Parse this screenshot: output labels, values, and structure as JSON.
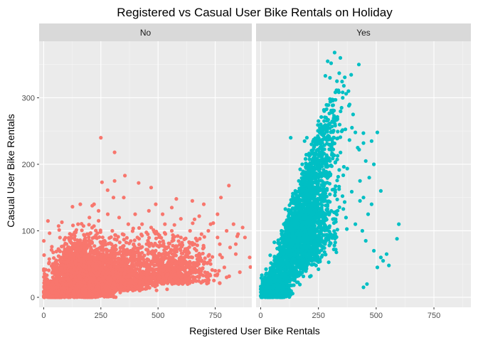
{
  "chart_data": {
    "type": "scatter",
    "title": "Registered vs Casual User Bike Rentals on Holiday",
    "xlabel": "Registered User Bike Rentals",
    "ylabel": "Casual User Bike Rentals",
    "xlim": [
      -20,
      910
    ],
    "ylim": [
      -15,
      385
    ],
    "x_ticks": [
      0,
      250,
      500,
      750
    ],
    "x_tick_labels": [
      "0",
      "250",
      "500",
      "750"
    ],
    "y_ticks": [
      0,
      100,
      200,
      300
    ],
    "y_tick_labels": [
      "0",
      "100",
      "200",
      "300"
    ],
    "grid": true,
    "legend": "none",
    "facet_by": "holiday",
    "series": [
      {
        "facet": "No",
        "color": "#F8766D",
        "values": [
          [
            250,
            240
          ],
          [
            310,
            218
          ],
          [
            355,
            183
          ],
          [
            255,
            173
          ],
          [
            415,
            172
          ],
          [
            310,
            175
          ],
          [
            470,
            165
          ],
          [
            350,
            150
          ],
          [
            160,
            140
          ],
          [
            305,
            150
          ],
          [
            490,
            140
          ],
          [
            560,
            135
          ],
          [
            580,
            148
          ],
          [
            650,
            145
          ],
          [
            700,
            140
          ],
          [
            775,
            150
          ],
          [
            810,
            168
          ],
          [
            520,
            125
          ],
          [
            460,
            130
          ],
          [
            400,
            125
          ],
          [
            600,
            118
          ],
          [
            680,
            122
          ],
          [
            730,
            110
          ],
          [
            760,
            125
          ],
          [
            830,
            110
          ],
          [
            850,
            95
          ],
          [
            880,
            90
          ],
          [
            870,
            105
          ],
          [
            840,
            80
          ],
          [
            800,
            100
          ],
          [
            760,
            90
          ],
          [
            720,
            100
          ],
          [
            690,
            95
          ],
          [
            640,
            100
          ],
          [
            600,
            90
          ],
          [
            560,
            100
          ],
          [
            530,
            110
          ],
          [
            500,
            95
          ],
          [
            470,
            105
          ],
          [
            430,
            110
          ],
          [
            780,
            60
          ],
          [
            750,
            40
          ],
          [
            720,
            35
          ],
          [
            700,
            50
          ],
          [
            650,
            60
          ],
          [
            620,
            45
          ],
          [
            600,
            30
          ],
          [
            560,
            55
          ],
          [
            520,
            40
          ],
          [
            700,
            75
          ],
          [
            800,
            30
          ],
          [
            770,
            80
          ],
          [
            840,
            65
          ],
          [
            660,
            80
          ],
          [
            630,
            70
          ],
          [
            575,
            75
          ],
          [
            545,
            65
          ],
          [
            590,
            20
          ],
          [
            640,
            25
          ],
          [
            680,
            30
          ],
          [
            730,
            50
          ],
          [
            760,
            35
          ],
          [
            790,
            45
          ],
          [
            815,
            75
          ],
          [
            150,
            110
          ],
          [
            200,
            120
          ],
          [
            240,
            115
          ],
          [
            280,
            125
          ],
          [
            330,
            120
          ],
          [
            370,
            110
          ],
          [
            240,
            130
          ],
          [
            190,
            95
          ],
          [
            220,
            140
          ],
          [
            300,
            100
          ],
          [
            345,
            95
          ],
          [
            410,
            90
          ],
          [
            450,
            80
          ],
          [
            490,
            70
          ],
          [
            420,
            60
          ],
          [
            380,
            70
          ],
          [
            120,
            90
          ],
          [
            100,
            80
          ],
          [
            80,
            60
          ],
          [
            60,
            50
          ],
          [
            40,
            30
          ],
          [
            20,
            15
          ],
          [
            10,
            5
          ],
          [
            5,
            2
          ]
        ],
        "dense_regions": [
          {
            "x_center": 160,
            "x_spread": 120,
            "y_center": 40,
            "y_spread": 40,
            "y_min": 0,
            "count": 2600
          },
          {
            "x_center": 320,
            "x_spread": 140,
            "y_center": 45,
            "y_spread": 35,
            "y_min": 0,
            "count": 1200
          },
          {
            "x_center": 560,
            "x_spread": 180,
            "y_center": 55,
            "y_spread": 35,
            "y_min": 0,
            "count": 700
          },
          {
            "x_center": 45,
            "x_spread": 40,
            "y_center": 8,
            "y_spread": 10,
            "y_min": 0,
            "count": 900
          }
        ]
      },
      {
        "facet": "Yes",
        "color": "#00BFC4",
        "values": [
          [
            320,
            368
          ],
          [
            345,
            360
          ],
          [
            305,
            352
          ],
          [
            290,
            355
          ],
          [
            425,
            350
          ],
          [
            340,
            337
          ],
          [
            280,
            333
          ],
          [
            300,
            330
          ],
          [
            330,
            325
          ],
          [
            360,
            318
          ],
          [
            380,
            310
          ],
          [
            355,
            300
          ],
          [
            300,
            298
          ],
          [
            275,
            280
          ],
          [
            320,
            270
          ],
          [
            350,
            285
          ],
          [
            385,
            290
          ],
          [
            400,
            275
          ],
          [
            395,
            255
          ],
          [
            410,
            248
          ],
          [
            505,
            248
          ],
          [
            480,
            235
          ],
          [
            445,
            232
          ],
          [
            420,
            225
          ],
          [
            455,
            205
          ],
          [
            490,
            200
          ],
          [
            470,
            180
          ],
          [
            430,
            175
          ],
          [
            520,
            160
          ],
          [
            445,
            150
          ],
          [
            480,
            140
          ],
          [
            430,
            145
          ],
          [
            465,
            125
          ],
          [
            410,
            110
          ],
          [
            440,
            100
          ],
          [
            455,
            85
          ],
          [
            490,
            70
          ],
          [
            520,
            60
          ],
          [
            545,
            65
          ],
          [
            505,
            45
          ],
          [
            598,
            110
          ],
          [
            590,
            88
          ],
          [
            555,
            48
          ],
          [
            530,
            55
          ],
          [
            460,
            20
          ],
          [
            445,
            15
          ],
          [
            200,
            240
          ],
          [
            130,
            240
          ],
          [
            190,
            235
          ],
          [
            220,
            230
          ],
          [
            240,
            215
          ],
          [
            260,
            230
          ],
          [
            180,
            200
          ],
          [
            165,
            175
          ],
          [
            150,
            160
          ],
          [
            200,
            160
          ],
          [
            120,
            130
          ],
          [
            100,
            110
          ],
          [
            90,
            100
          ],
          [
            80,
            80
          ],
          [
            60,
            60
          ],
          [
            50,
            45
          ],
          [
            40,
            30
          ],
          [
            30,
            20
          ],
          [
            270,
            150
          ],
          [
            250,
            180
          ],
          [
            230,
            190
          ],
          [
            300,
            205
          ],
          [
            310,
            230
          ],
          [
            260,
            260
          ],
          [
            250,
            265
          ]
        ],
        "dense_regions": [
          {
            "x_center": 190,
            "x_spread": 130,
            "y_center": 95,
            "y_spread": 85,
            "y_min": 0,
            "count": 2200,
            "correlated": true,
            "slope": 0.72
          },
          {
            "x_center": 60,
            "x_spread": 55,
            "y_center": 12,
            "y_spread": 15,
            "y_min": 0,
            "count": 900,
            "correlated": false
          }
        ]
      }
    ]
  },
  "facets": {
    "left": "No",
    "right": "Yes"
  }
}
